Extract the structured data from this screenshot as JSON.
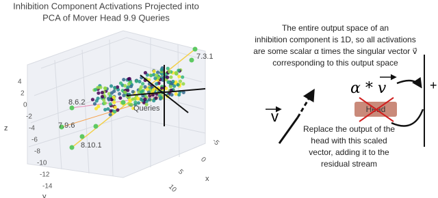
{
  "figure": {
    "left": {
      "title": [
        "Inhibition Component Activations Projected into",
        "PCA of Mover Head 9.9 Queries"
      ],
      "point_labels": [
        "7.3.1",
        "8.6.2",
        "7.9.6",
        "8.10.1",
        "Queries"
      ],
      "z_ticks": [
        "4",
        "2",
        "0",
        "-2",
        "-4",
        "-6",
        "-8",
        "-10",
        "-12",
        "-14"
      ],
      "x_ticks": [
        "-5",
        "0",
        "5",
        "10"
      ],
      "axis_titles": {
        "z": "z",
        "x": "x",
        "y": "y"
      }
    },
    "right": {
      "explanation": [
        "The entire output space of an",
        "inhibition component is 1D, so all activations",
        "are some scalar α times the singular vector v⃗",
        "corresponding to this output space"
      ],
      "formula": "α * v",
      "plus": "+",
      "head": "Head",
      "vector": "v",
      "replace": [
        "Replace the output of the",
        "head with this scaled",
        "vector, adding it to the",
        "residual stream"
      ]
    }
  }
}
